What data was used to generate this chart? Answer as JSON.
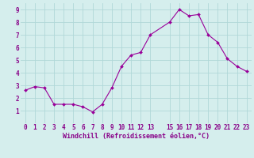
{
  "x": [
    0,
    1,
    2,
    3,
    4,
    5,
    6,
    7,
    8,
    9,
    10,
    11,
    12,
    13,
    15,
    16,
    17,
    18,
    19,
    20,
    21,
    22,
    23
  ],
  "y": [
    2.6,
    2.9,
    2.8,
    1.5,
    1.5,
    1.5,
    1.3,
    0.9,
    1.5,
    2.8,
    4.5,
    5.4,
    5.6,
    7.0,
    8.0,
    9.0,
    8.5,
    8.6,
    7.0,
    6.4,
    5.1,
    4.5,
    4.1
  ],
  "line_color": "#990099",
  "marker_color": "#990099",
  "bg_color": "#d5eeed",
  "grid_color": "#b0d8d8",
  "xlabel": "Windchill (Refroidissement éolien,°C)",
  "xlabel_color": "#880088",
  "xlabel_fontsize": 6.0,
  "tick_color": "#880088",
  "tick_fontsize": 5.5,
  "ylim": [
    0,
    9.5
  ],
  "xlim": [
    -0.5,
    23.5
  ],
  "yticks": [
    1,
    2,
    3,
    4,
    5,
    6,
    7,
    8,
    9
  ],
  "xticks": [
    0,
    1,
    2,
    3,
    4,
    5,
    6,
    7,
    8,
    9,
    10,
    11,
    12,
    13,
    15,
    16,
    17,
    18,
    19,
    20,
    21,
    22,
    23
  ]
}
